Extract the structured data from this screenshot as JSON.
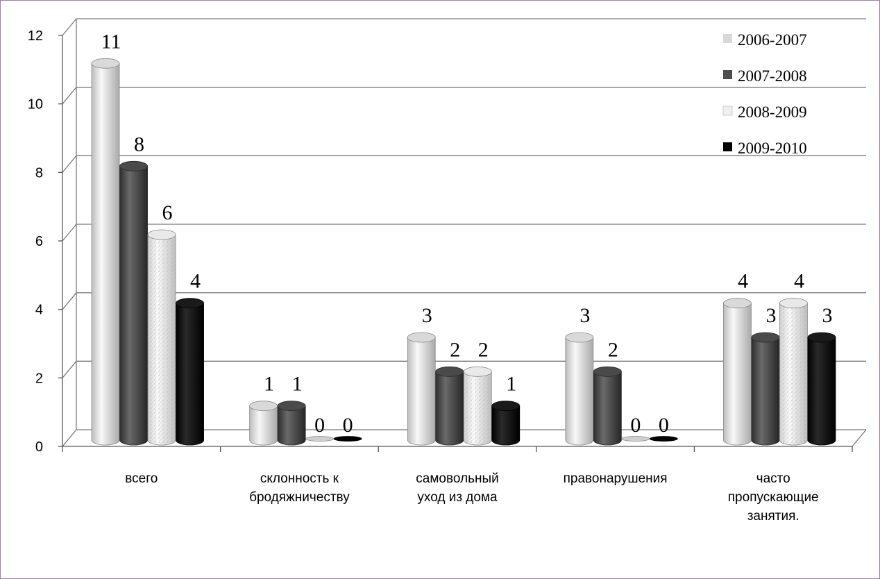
{
  "chart_data": {
    "type": "bar",
    "categories": [
      [
        "всего"
      ],
      [
        "склонность к",
        "бродяжничеству"
      ],
      [
        "самовольный",
        "уход из дома"
      ],
      [
        "правонарушения"
      ],
      [
        "часто",
        "пропускающие",
        "занятия."
      ]
    ],
    "series": [
      {
        "name": "2006-2007",
        "values": [
          11,
          1,
          3,
          3,
          4
        ],
        "color": "#e6e6e6",
        "pattern": "light-cylinder"
      },
      {
        "name": "2007-2008",
        "values": [
          8,
          1,
          2,
          2,
          3
        ],
        "color": "#555555",
        "pattern": "dark-cylinder"
      },
      {
        "name": "2008-2009",
        "values": [
          6,
          0,
          2,
          0,
          4
        ],
        "color": "#f2f2f2",
        "pattern": "speckled-cylinder"
      },
      {
        "name": "2009-2010",
        "values": [
          4,
          0,
          1,
          0,
          3
        ],
        "color": "#050505",
        "pattern": "black-cylinder"
      }
    ],
    "yticks": [
      "0",
      "2",
      "4",
      "6",
      "8",
      "10",
      "12"
    ],
    "ylim": [
      0,
      12
    ],
    "grid": true,
    "legend_position": "top-right",
    "bar_shape": "3d-cylinder",
    "data_labels": true
  }
}
